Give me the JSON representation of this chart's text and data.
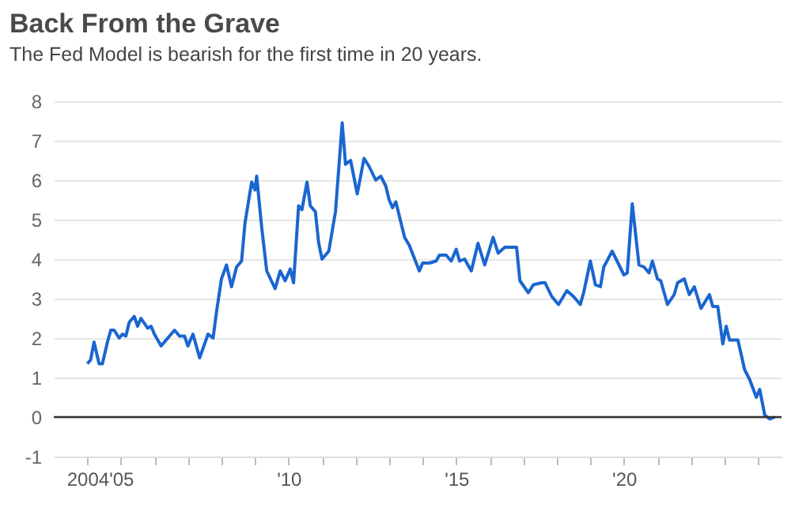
{
  "chart_data": {
    "type": "line",
    "title": "Back From the Grave",
    "subtitle": "The Fed Model is bearish for the first time in 20 years.",
    "series": [
      {
        "color": "#1a66d0",
        "x": [
          2004.0,
          2004.1,
          2004.2,
          2004.35,
          2004.45,
          2004.6,
          2004.7,
          2004.8,
          2004.95,
          2005.05,
          2005.15,
          2005.25,
          2005.4,
          2005.5,
          2005.6,
          2005.8,
          2005.9,
          2006.0,
          2006.2,
          2006.4,
          2006.6,
          2006.75,
          2006.9,
          2007.0,
          2007.15,
          2007.35,
          2007.6,
          2007.75,
          2007.85,
          2008.0,
          2008.15,
          2008.3,
          2008.45,
          2008.6,
          2008.7,
          2008.9,
          2009.0,
          2009.05,
          2009.2,
          2009.35,
          2009.6,
          2009.75,
          2009.9,
          2010.05,
          2010.15,
          2010.3,
          2010.4,
          2010.55,
          2010.65,
          2010.8,
          2010.9,
          2011.0,
          2011.2,
          2011.4,
          2011.6,
          2011.7,
          2011.85,
          2012.05,
          2012.25,
          2012.4,
          2012.6,
          2012.75,
          2012.9,
          2013.0,
          2013.1,
          2013.2,
          2013.46,
          2013.6,
          2013.9,
          2014.0,
          2014.2,
          2014.4,
          2014.5,
          2014.7,
          2014.85,
          2015.0,
          2015.1,
          2015.25,
          2015.45,
          2015.65,
          2015.85,
          2016.1,
          2016.25,
          2016.45,
          2016.8,
          2016.9,
          2017.15,
          2017.3,
          2017.55,
          2017.65,
          2017.85,
          2018.05,
          2018.3,
          2018.5,
          2018.7,
          2018.8,
          2019.0,
          2019.15,
          2019.3,
          2019.4,
          2019.65,
          2020.0,
          2020.1,
          2020.25,
          2020.45,
          2020.6,
          2020.75,
          2020.85,
          2021.0,
          2021.1,
          2021.3,
          2021.5,
          2021.6,
          2021.8,
          2021.95,
          2022.1,
          2022.3,
          2022.55,
          2022.65,
          2022.8,
          2022.95,
          2023.05,
          2023.15,
          2023.4,
          2023.6,
          2023.75,
          2023.95,
          2024.05,
          2024.2,
          2024.35,
          2024.5
        ],
        "values": [
          1.35,
          1.45,
          1.9,
          1.35,
          1.35,
          1.9,
          2.2,
          2.2,
          2.0,
          2.1,
          2.05,
          2.4,
          2.55,
          2.3,
          2.5,
          2.25,
          2.3,
          2.1,
          1.8,
          2.0,
          2.2,
          2.05,
          2.05,
          1.8,
          2.1,
          1.5,
          2.1,
          2.0,
          2.65,
          3.5,
          3.85,
          3.3,
          3.8,
          3.95,
          4.9,
          5.95,
          5.75,
          6.1,
          4.8,
          3.7,
          3.25,
          3.7,
          3.45,
          3.75,
          3.4,
          5.35,
          5.25,
          5.95,
          5.35,
          5.2,
          4.4,
          4.0,
          4.2,
          5.2,
          7.45,
          6.4,
          6.5,
          5.65,
          6.55,
          6.35,
          6.0,
          6.1,
          5.85,
          5.5,
          5.3,
          5.45,
          4.55,
          4.35,
          3.7,
          3.9,
          3.9,
          3.95,
          4.1,
          4.1,
          3.95,
          4.25,
          3.95,
          4.0,
          3.7,
          4.4,
          3.85,
          4.55,
          4.15,
          4.3,
          4.3,
          3.45,
          3.15,
          3.35,
          3.4,
          3.4,
          3.05,
          2.85,
          3.2,
          3.05,
          2.85,
          3.15,
          3.95,
          3.35,
          3.3,
          3.8,
          4.2,
          3.6,
          3.65,
          5.4,
          3.85,
          3.8,
          3.65,
          3.95,
          3.5,
          3.45,
          2.85,
          3.1,
          3.4,
          3.5,
          3.1,
          3.3,
          2.75,
          3.1,
          2.8,
          2.8,
          1.85,
          2.3,
          1.95,
          1.95,
          1.2,
          0.95,
          0.5,
          0.7,
          0.05,
          -0.05,
          0.0
        ]
      }
    ],
    "xlim": [
      2003,
      2024.7
    ],
    "xticks": [
      {
        "value": 2004,
        "label": "2004"
      },
      {
        "value": 2005,
        "label": "'05"
      },
      {
        "value": 2006,
        "label": null
      },
      {
        "value": 2007,
        "label": null
      },
      {
        "value": 2008,
        "label": null
      },
      {
        "value": 2009,
        "label": null
      },
      {
        "value": 2010,
        "label": "'10"
      },
      {
        "value": 2011,
        "label": null
      },
      {
        "value": 2012,
        "label": null
      },
      {
        "value": 2013,
        "label": null
      },
      {
        "value": 2014,
        "label": null
      },
      {
        "value": 2015,
        "label": "'15"
      },
      {
        "value": 2016,
        "label": null
      },
      {
        "value": 2017,
        "label": null
      },
      {
        "value": 2018,
        "label": null
      },
      {
        "value": 2019,
        "label": null
      },
      {
        "value": 2020,
        "label": "'20"
      },
      {
        "value": 2021,
        "label": null
      },
      {
        "value": 2022,
        "label": null
      },
      {
        "value": 2023,
        "label": null
      },
      {
        "value": 2024,
        "label": null
      }
    ],
    "ylim": [
      -1,
      8
    ],
    "yticks": [
      -1,
      0,
      1,
      2,
      3,
      4,
      5,
      6,
      7,
      8
    ],
    "ref_lines": [
      {
        "axis": "y",
        "value": 0,
        "color": "#333333"
      }
    ],
    "grid": "y",
    "marker": "none",
    "line_style": "solid"
  }
}
